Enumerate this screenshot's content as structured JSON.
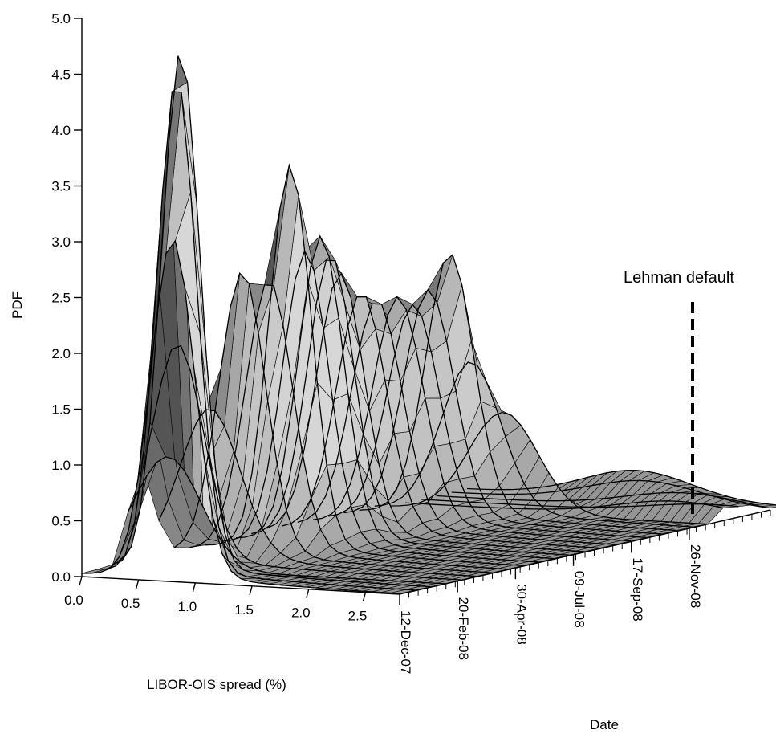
{
  "chart_data": {
    "type": "surface",
    "xlabel": "LIBOR-OIS spread (%)",
    "ylabel": "Date",
    "zlabel": "PDF",
    "xlim": [
      0,
      2.8
    ],
    "zlim": [
      0,
      5
    ],
    "x_ticks": [
      "0.0",
      "0.5",
      "1.0",
      "1.5",
      "2.0",
      "2.5"
    ],
    "date_ticks": [
      "12-Dec-07",
      "20-Feb-08",
      "30-Apr-08",
      "09-Jul-08",
      "17-Sep-08",
      "26-Nov-08"
    ],
    "z_ticks": [
      "0.0",
      "0.5",
      "1.0",
      "1.5",
      "2.0",
      "2.5",
      "3.0",
      "3.5",
      "4.0",
      "4.5",
      "5.0"
    ],
    "annotation": {
      "text": "Lehman default",
      "date": "15-Sep-08"
    },
    "series": [
      {
        "date": "12-Dec-07",
        "mode": 0.8,
        "peak": 3.0
      },
      {
        "date": "21-Dec-07",
        "mode": 0.7,
        "peak": 4.4
      },
      {
        "date": "31-Dec-07",
        "mode": 0.6,
        "peak": 4.6
      },
      {
        "date": "14-Jan-08",
        "mode": 0.35,
        "peak": 1.0
      },
      {
        "date": "28-Jan-08",
        "mode": 0.3,
        "peak": 1.9
      },
      {
        "date": "11-Feb-08",
        "mode": 0.45,
        "peak": 1.3
      },
      {
        "date": "03-Mar-08",
        "mode": 0.6,
        "peak": 2.5
      },
      {
        "date": "17-Mar-08",
        "mode": 0.7,
        "peak": 2.4
      },
      {
        "date": "31-Mar-08",
        "mode": 0.75,
        "peak": 3.4
      },
      {
        "date": "14-Apr-08",
        "mode": 0.75,
        "peak": 2.6
      },
      {
        "date": "28-Apr-08",
        "mode": 0.75,
        "peak": 2.7
      },
      {
        "date": "12-May-08",
        "mode": 0.7,
        "peak": 2.5
      },
      {
        "date": "26-May-08",
        "mode": 0.65,
        "peak": 2.3
      },
      {
        "date": "09-Jun-08",
        "mode": 0.7,
        "peak": 2.1
      },
      {
        "date": "23-Jun-08",
        "mode": 0.7,
        "peak": 2.0
      },
      {
        "date": "07-Jul-08",
        "mode": 0.75,
        "peak": 2.0
      },
      {
        "date": "21-Jul-08",
        "mode": 0.75,
        "peak": 1.9
      },
      {
        "date": "04-Aug-08",
        "mode": 0.75,
        "peak": 2.0
      },
      {
        "date": "18-Aug-08",
        "mode": 0.8,
        "peak": 2.3
      },
      {
        "date": "01-Sep-08",
        "mode": 0.85,
        "peak": 1.3
      },
      {
        "date": "15-Sep-08",
        "mode": 1.0,
        "peak": 0.9
      },
      {
        "date": "29-Sep-08",
        "mode": 2.4,
        "peak": 0.15
      },
      {
        "date": "13-Oct-08",
        "mode": 2.6,
        "peak": 0.1
      },
      {
        "date": "27-Oct-08",
        "mode": 2.2,
        "peak": 0.15
      },
      {
        "date": "10-Nov-08",
        "mode": 1.7,
        "peak": 0.2
      },
      {
        "date": "26-Nov-08",
        "mode": 1.5,
        "peak": 0.25
      }
    ]
  }
}
